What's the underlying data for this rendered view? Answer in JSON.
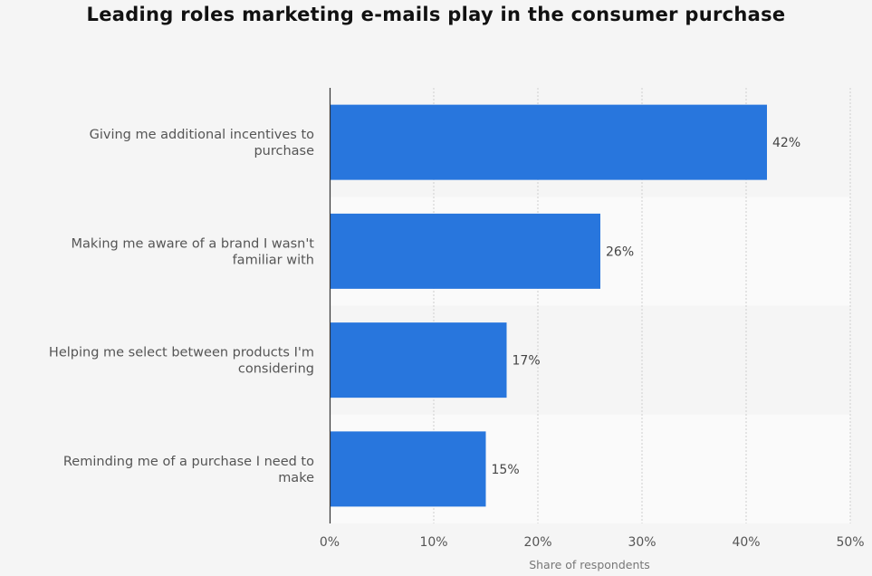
{
  "chart_data": {
    "type": "bar",
    "orientation": "horizontal",
    "title": "Leading roles marketing e-mails play in the consumer purchase",
    "xlabel": "Share of respondents",
    "ylabel": "",
    "categories": [
      [
        "Giving me additional incentives to",
        "purchase"
      ],
      [
        "Making me aware of a brand I wasn't",
        "familiar with"
      ],
      [
        "Helping me select between products I'm",
        "considering"
      ],
      [
        "Reminding me of a purchase I need to",
        "make"
      ]
    ],
    "values": [
      42,
      26,
      17,
      15
    ],
    "data_labels": [
      "42%",
      "26%",
      "17%",
      "15%"
    ],
    "xlim": [
      0,
      50
    ],
    "ticks": [
      0,
      10,
      20,
      30,
      40,
      50
    ],
    "tick_labels": [
      "0%",
      "10%",
      "20%",
      "30%",
      "40%",
      "50%"
    ],
    "grid": true,
    "legend": "none",
    "bar_color": "#2876dd"
  }
}
